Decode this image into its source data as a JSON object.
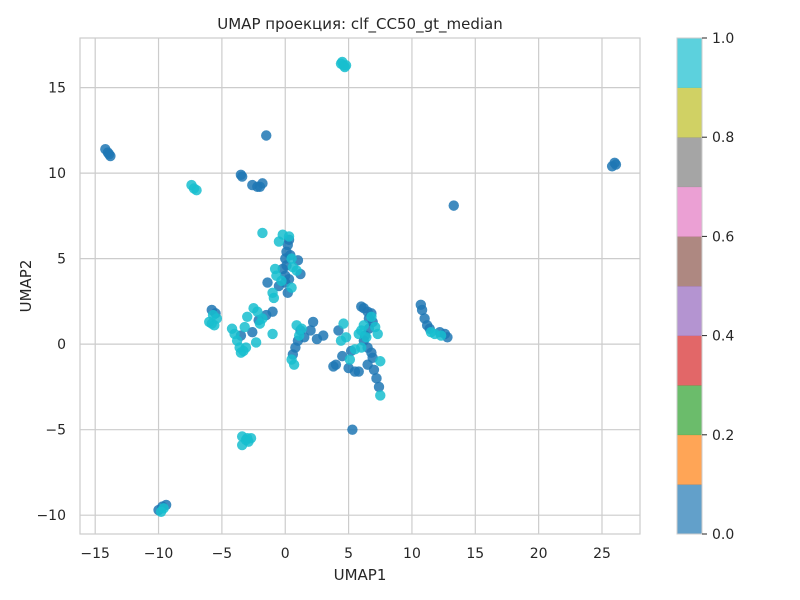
{
  "chart_data": {
    "type": "scatter",
    "title": "UMAP проекция: clf_CC50_gt_median",
    "xlabel": "UMAP1",
    "ylabel": "UMAP2",
    "xlim": [
      -16.2,
      28.0
    ],
    "ylim": [
      -11.1,
      17.9
    ],
    "xticks": [
      -15,
      -10,
      -5,
      0,
      5,
      10,
      15,
      20,
      25
    ],
    "yticks": [
      -10,
      -5,
      0,
      5,
      10,
      15
    ],
    "grid": true,
    "colors": {
      "class_0": "#1f77b4",
      "class_1": "#17becf"
    },
    "colorbar": {
      "range": [
        0,
        1
      ],
      "ticks": [
        "0.0",
        "0.2",
        "0.4",
        "0.6",
        "0.8",
        "1.0"
      ],
      "colors": [
        "#1f77b4",
        "#ff7f0e",
        "#2ca02c",
        "#d62728",
        "#9467bd",
        "#8c564b",
        "#e377c2",
        "#7f7f7f",
        "#bcbd22",
        "#17becf"
      ]
    },
    "series": [
      {
        "values": [
          [
            -14.2,
            11.4
          ],
          [
            -14.0,
            11.2
          ],
          [
            -13.8,
            11.0
          ],
          [
            -13.9,
            11.1
          ],
          [
            -3.5,
            9.9
          ],
          [
            -3.4,
            9.8
          ],
          [
            -2.6,
            9.3
          ],
          [
            -2.2,
            9.2
          ],
          [
            -1.8,
            9.4
          ],
          [
            -2.0,
            9.2
          ],
          [
            -1.5,
            12.2
          ],
          [
            13.3,
            8.1
          ],
          [
            26.0,
            10.6
          ],
          [
            25.8,
            10.4
          ],
          [
            26.1,
            10.5
          ],
          [
            -10.0,
            -9.7
          ],
          [
            -9.7,
            -9.5
          ],
          [
            -9.4,
            -9.4
          ],
          [
            5.3,
            -5.0
          ],
          [
            0.3,
            6.1
          ],
          [
            0.2,
            5.8
          ],
          [
            0.1,
            5.4
          ],
          [
            0.0,
            5.0
          ],
          [
            0.4,
            5.2
          ],
          [
            0.1,
            4.6
          ],
          [
            -0.2,
            4.4
          ],
          [
            0.0,
            4.0
          ],
          [
            0.3,
            3.8
          ],
          [
            1.0,
            4.9
          ],
          [
            1.2,
            4.1
          ],
          [
            0.0,
            3.6
          ],
          [
            -0.5,
            3.4
          ],
          [
            0.2,
            3.0
          ],
          [
            -1.4,
            3.6
          ],
          [
            -1.0,
            1.9
          ],
          [
            -1.5,
            1.7
          ],
          [
            -2.1,
            1.4
          ],
          [
            -3.5,
            0.5
          ],
          [
            -2.6,
            0.7
          ],
          [
            -5.8,
            2.0
          ],
          [
            -5.5,
            1.8
          ],
          [
            1.2,
            0.8
          ],
          [
            2.2,
            1.3
          ],
          [
            2.0,
            0.8
          ],
          [
            1.5,
            0.4
          ],
          [
            1.0,
            0.2
          ],
          [
            0.8,
            -0.2
          ],
          [
            0.6,
            -0.6
          ],
          [
            3.0,
            0.5
          ],
          [
            2.5,
            0.3
          ],
          [
            4.0,
            -1.2
          ],
          [
            3.8,
            -1.3
          ],
          [
            4.2,
            0.8
          ],
          [
            4.5,
            -0.7
          ],
          [
            5.2,
            -0.4
          ],
          [
            5.0,
            -1.4
          ],
          [
            5.5,
            -1.6
          ],
          [
            5.8,
            -1.6
          ],
          [
            6.0,
            2.2
          ],
          [
            6.2,
            2.1
          ],
          [
            6.5,
            1.9
          ],
          [
            6.8,
            1.8
          ],
          [
            6.6,
            1.5
          ],
          [
            6.9,
            1.3
          ],
          [
            6.6,
            0.9
          ],
          [
            6.3,
            0.5
          ],
          [
            6.2,
            0.2
          ],
          [
            6.5,
            -0.2
          ],
          [
            6.8,
            -0.5
          ],
          [
            6.9,
            -0.8
          ],
          [
            6.5,
            -1.2
          ],
          [
            7.0,
            -1.5
          ],
          [
            7.2,
            -2.0
          ],
          [
            7.4,
            -2.5
          ],
          [
            10.7,
            2.3
          ],
          [
            10.8,
            2.0
          ],
          [
            11.0,
            1.5
          ],
          [
            11.2,
            1.1
          ],
          [
            11.4,
            0.9
          ],
          [
            12.2,
            0.7
          ],
          [
            12.6,
            0.6
          ],
          [
            12.8,
            0.4
          ]
        ]
      },
      {
        "values": [
          [
            4.4,
            16.4
          ],
          [
            4.6,
            16.3
          ],
          [
            4.8,
            16.3
          ],
          [
            4.5,
            16.5
          ],
          [
            4.7,
            16.2
          ],
          [
            -7.4,
            9.3
          ],
          [
            -7.2,
            9.1
          ],
          [
            -7.0,
            9.0
          ],
          [
            -1.8,
            6.5
          ],
          [
            -0.2,
            6.4
          ],
          [
            -0.5,
            6.0
          ],
          [
            0.3,
            6.3
          ],
          [
            0.6,
            4.5
          ],
          [
            0.9,
            4.3
          ],
          [
            0.5,
            5.0
          ],
          [
            -0.8,
            4.4
          ],
          [
            -0.7,
            4.0
          ],
          [
            -0.3,
            3.7
          ],
          [
            -1.0,
            3.0
          ],
          [
            -0.9,
            2.7
          ],
          [
            0.5,
            3.3
          ],
          [
            -2.5,
            2.1
          ],
          [
            -2.2,
            1.9
          ],
          [
            -1.8,
            1.5
          ],
          [
            -3.0,
            1.6
          ],
          [
            -3.2,
            1.0
          ],
          [
            -4.2,
            0.9
          ],
          [
            -4.0,
            0.6
          ],
          [
            -3.8,
            0.2
          ],
          [
            -3.6,
            -0.2
          ],
          [
            -3.5,
            -0.5
          ],
          [
            -3.3,
            -0.4
          ],
          [
            -3.1,
            -0.2
          ],
          [
            -2.3,
            0.1
          ],
          [
            -2.0,
            1.2
          ],
          [
            -1.0,
            0.6
          ],
          [
            -6.0,
            1.3
          ],
          [
            -5.8,
            1.2
          ],
          [
            -5.6,
            1.1
          ],
          [
            -5.4,
            1.5
          ],
          [
            -5.7,
            1.7
          ],
          [
            0.9,
            1.1
          ],
          [
            1.3,
            0.9
          ],
          [
            1.1,
            0.5
          ],
          [
            0.5,
            -0.9
          ],
          [
            0.7,
            -1.2
          ],
          [
            4.6,
            1.2
          ],
          [
            4.8,
            0.4
          ],
          [
            4.4,
            0.2
          ],
          [
            5.5,
            -0.3
          ],
          [
            5.1,
            -0.9
          ],
          [
            5.8,
            0.6
          ],
          [
            6.0,
            0.8
          ],
          [
            6.2,
            1.1
          ],
          [
            6.0,
            -0.2
          ],
          [
            6.4,
            0.4
          ],
          [
            6.8,
            1.6
          ],
          [
            7.1,
            1.0
          ],
          [
            7.3,
            0.6
          ],
          [
            7.5,
            -1.0
          ],
          [
            7.5,
            -3.0
          ],
          [
            11.5,
            0.7
          ],
          [
            11.8,
            0.6
          ],
          [
            12.3,
            0.5
          ],
          [
            -3.4,
            -5.4
          ],
          [
            -3.1,
            -5.6
          ],
          [
            -3.4,
            -5.9
          ],
          [
            -3.0,
            -5.5
          ],
          [
            -2.9,
            -5.7
          ],
          [
            -2.7,
            -5.5
          ],
          [
            -9.8,
            -9.8
          ],
          [
            -9.6,
            -9.6
          ]
        ]
      }
    ]
  }
}
